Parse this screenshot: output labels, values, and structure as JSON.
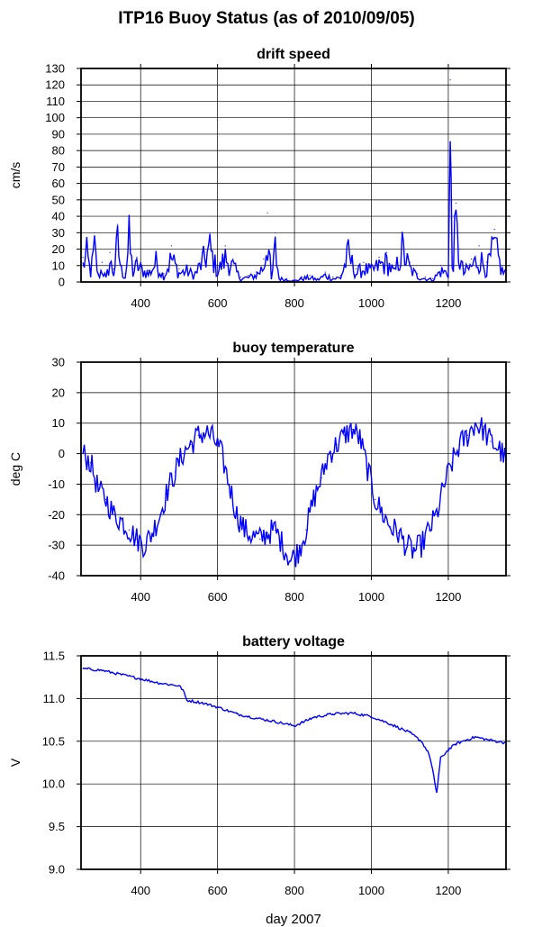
{
  "title": "ITP16 Buoy Status (as of 2010/09/05)",
  "xlabel": "day 2007",
  "colors": {
    "series": "#0000ff",
    "grid": "#000000"
  },
  "chart_data": [
    {
      "type": "line",
      "title": "drift speed",
      "ylabel": "cm/s",
      "xlim": [
        245,
        1350
      ],
      "ylim": [
        0,
        130
      ],
      "xticks": [
        400,
        600,
        800,
        1000,
        1200
      ],
      "yticks": [
        0,
        10,
        20,
        30,
        40,
        50,
        60,
        70,
        80,
        90,
        100,
        110,
        120,
        130
      ],
      "ytick_labels": [
        "0",
        "10",
        "20",
        "30",
        "40",
        "50",
        "60",
        "70",
        "80",
        "90",
        "100",
        "110",
        "120",
        "130"
      ],
      "grid": true,
      "series": [
        {
          "x": [
            250,
            260,
            270,
            280,
            290,
            300,
            310,
            320,
            330,
            340,
            350,
            360,
            370,
            380,
            390,
            400,
            420,
            440,
            460,
            480,
            500,
            520,
            540,
            560,
            580,
            600,
            620,
            640,
            660,
            680,
            700,
            720,
            730,
            740,
            750,
            760,
            780,
            800,
            820,
            840,
            860,
            880,
            900,
            920,
            940,
            960,
            980,
            1000,
            1020,
            1040,
            1060,
            1080,
            1100,
            1120,
            1140,
            1160,
            1180,
            1200,
            1205,
            1210,
            1220,
            1230,
            1240,
            1260,
            1280,
            1300,
            1320,
            1340,
            1350
          ],
          "y": [
            15,
            25,
            8,
            30,
            5,
            12,
            3,
            18,
            8,
            35,
            10,
            5,
            38,
            8,
            15,
            12,
            7,
            18,
            5,
            22,
            8,
            10,
            6,
            18,
            30,
            9,
            22,
            14,
            3,
            4,
            6,
            14,
            42,
            2,
            30,
            3,
            2,
            1,
            3,
            4,
            2,
            6,
            3,
            4,
            25,
            8,
            12,
            10,
            15,
            18,
            8,
            30,
            12,
            5,
            3,
            2,
            10,
            8,
            123,
            15,
            48,
            20,
            8,
            14,
            22,
            12,
            32,
            10,
            8
          ]
        }
      ]
    },
    {
      "type": "line",
      "title": "buoy temperature",
      "ylabel": "deg C",
      "xlim": [
        245,
        1350
      ],
      "ylim": [
        -40,
        30
      ],
      "xticks": [
        400,
        600,
        800,
        1000,
        1200
      ],
      "yticks": [
        -40,
        -30,
        -20,
        -10,
        0,
        10,
        20,
        30
      ],
      "ytick_labels": [
        "-40",
        "-30",
        "-20",
        "-10",
        "0",
        "10",
        "20",
        "30"
      ],
      "grid": true,
      "series": [
        {
          "x": [
            250,
            270,
            290,
            310,
            330,
            350,
            370,
            390,
            410,
            430,
            450,
            470,
            490,
            510,
            530,
            550,
            570,
            590,
            610,
            630,
            650,
            670,
            690,
            710,
            730,
            750,
            770,
            790,
            810,
            830,
            850,
            870,
            890,
            910,
            930,
            950,
            970,
            990,
            1010,
            1030,
            1050,
            1070,
            1090,
            1110,
            1130,
            1150,
            1170,
            1190,
            1210,
            1230,
            1250,
            1270,
            1290,
            1310,
            1330,
            1350
          ],
          "y": [
            0,
            -3,
            -12,
            -15,
            -20,
            -22,
            -25,
            -28,
            -30,
            -26,
            -20,
            -12,
            -6,
            0,
            3,
            6,
            7,
            5,
            0,
            -10,
            -20,
            -25,
            -27,
            -28,
            -26,
            -25,
            -30,
            -35,
            -32,
            -25,
            -15,
            -8,
            0,
            3,
            6,
            8,
            5,
            -5,
            -15,
            -20,
            -24,
            -26,
            -30,
            -32,
            -30,
            -25,
            -20,
            -10,
            -3,
            3,
            6,
            10,
            8,
            4,
            2,
            -2
          ]
        }
      ]
    },
    {
      "type": "line",
      "title": "battery voltage",
      "ylabel": "V",
      "xlim": [
        245,
        1350
      ],
      "ylim": [
        9.0,
        11.5
      ],
      "xticks": [
        400,
        600,
        800,
        1000,
        1200
      ],
      "yticks": [
        9.0,
        9.5,
        10.0,
        10.5,
        11.0,
        11.5
      ],
      "ytick_labels": [
        "9.0",
        "9.5",
        "10.0",
        "10.5",
        "11.0",
        "11.5"
      ],
      "grid": true,
      "series": [
        {
          "x": [
            250,
            300,
            350,
            400,
            450,
            500,
            510,
            520,
            560,
            600,
            650,
            700,
            750,
            800,
            820,
            850,
            900,
            950,
            1000,
            1050,
            1100,
            1130,
            1150,
            1160,
            1165,
            1170,
            1175,
            1180,
            1200,
            1220,
            1250,
            1270,
            1300,
            1350
          ],
          "y": [
            11.35,
            11.33,
            11.28,
            11.23,
            11.18,
            11.15,
            11.1,
            10.98,
            10.95,
            10.9,
            10.82,
            10.77,
            10.73,
            10.68,
            10.72,
            10.78,
            10.82,
            10.83,
            10.79,
            10.7,
            10.6,
            10.5,
            10.35,
            10.15,
            10.0,
            9.9,
            10.1,
            10.3,
            10.4,
            10.47,
            10.52,
            10.55,
            10.52,
            10.48
          ]
        }
      ]
    }
  ]
}
